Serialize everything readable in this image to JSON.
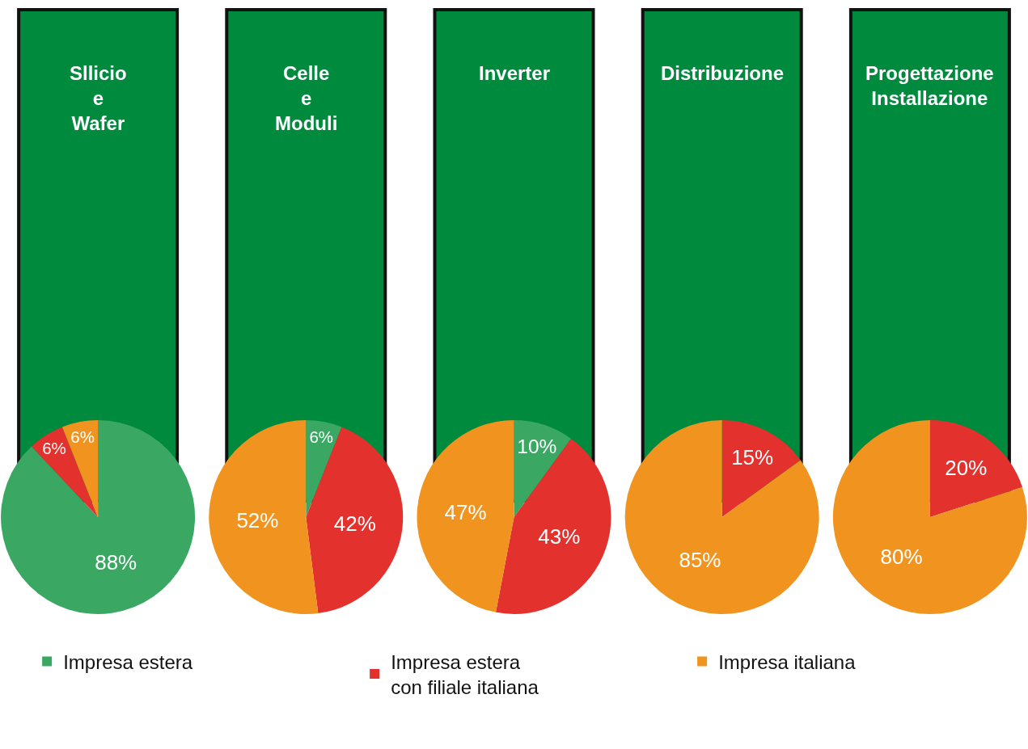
{
  "chart_data": [
    {
      "type": "pie",
      "title": "Sllicio\ne\nWafer",
      "categories": [
        "Impresa estera",
        "Impresa estera\ncon filiale italiana",
        "Impresa italiana"
      ],
      "values": [
        88,
        6,
        6
      ],
      "colors": [
        "#3aa862",
        "#e3312d",
        "#f0941f"
      ],
      "value_labels": [
        "88%",
        "6%",
        "6%"
      ],
      "legend": "bottom"
    },
    {
      "type": "pie",
      "title": "Celle\ne\nModuli",
      "categories": [
        null,
        null,
        null
      ],
      "values": [
        6,
        42,
        52
      ],
      "colors": [
        "#3aa862",
        "#e3312d",
        "#f0941f"
      ],
      "value_labels": [
        "6%",
        "42%",
        "52%"
      ]
    },
    {
      "type": "pie",
      "title": "Inverter",
      "categories": [
        null,
        null,
        null
      ],
      "values": [
        10,
        43,
        47
      ],
      "colors": [
        "#3aa862",
        "#e3312d",
        "#f0941f"
      ],
      "value_labels": [
        "10%",
        "43%",
        "47%"
      ]
    },
    {
      "type": "pie",
      "title": "Distribuzione",
      "categories": [
        null,
        null
      ],
      "values": [
        15,
        85
      ],
      "colors": [
        "#e3312d",
        "#f0941f"
      ],
      "value_labels": [
        "15%",
        "85%"
      ]
    },
    {
      "type": "pie",
      "title": "Progettazione\nInstallazione",
      "categories": [
        null,
        null
      ],
      "values": [
        20,
        80
      ],
      "colors": [
        "#e3312d",
        "#f0941f"
      ],
      "value_labels": [
        "20%",
        "80%"
      ]
    }
  ]
}
